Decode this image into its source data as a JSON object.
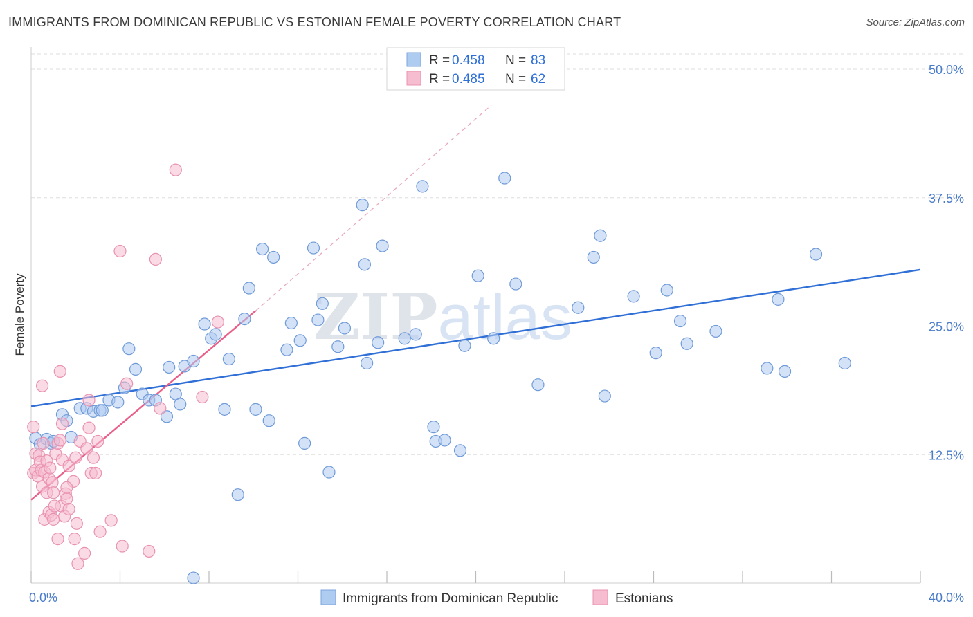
{
  "header": {
    "title": "IMMIGRANTS FROM DOMINICAN REPUBLIC VS ESTONIAN FEMALE POVERTY CORRELATION CHART",
    "source": "Source: ZipAtlas.com"
  },
  "watermark": {
    "part1": "ZIP",
    "part2": "atlas"
  },
  "colors": {
    "blue": "#2f6fd6",
    "blue_fill": "#aecbf0",
    "pink": "#e8608a",
    "pink_fill": "#f6bcd0",
    "grid": "#dddddd",
    "tick_text": "#4a7cc9"
  },
  "legend": {
    "r_label": "R =",
    "n_label": "N =",
    "rows": [
      {
        "r": "0.458",
        "n": "83"
      },
      {
        "r": "0.485",
        "n": "62"
      }
    ]
  },
  "chart_data": {
    "type": "scatter",
    "title": "IMMIGRANTS FROM DOMINICAN REPUBLIC VS ESTONIAN FEMALE POVERTY CORRELATION CHART",
    "ylabel": "Female Poverty",
    "xlabel": "",
    "xlim": [
      0,
      40
    ],
    "ylim": [
      0,
      50
    ],
    "x_tick_labels": [
      {
        "value": 0,
        "label": "0.0%"
      },
      {
        "value": 40,
        "label": "40.0%"
      }
    ],
    "y_tick_labels": [
      {
        "value": 12.5,
        "label": "12.5%"
      },
      {
        "value": 25,
        "label": "25.0%"
      },
      {
        "value": 37.5,
        "label": "37.5%"
      },
      {
        "value": 50,
        "label": "50.0%"
      }
    ],
    "grid": true,
    "legend_position": "top-center",
    "series": [
      {
        "name": "Immigrants from Dominican Republic",
        "color": "#2f6fd6",
        "trend": {
          "x": [
            0,
            40
          ],
          "y": [
            17.2,
            30.5
          ],
          "style": "solid"
        },
        "points": [
          [
            0.2,
            14.1
          ],
          [
            0.4,
            13.5
          ],
          [
            0.7,
            14.0
          ],
          [
            0.9,
            13.6
          ],
          [
            1.0,
            13.8
          ],
          [
            1.4,
            16.4
          ],
          [
            1.6,
            15.8
          ],
          [
            1.8,
            14.2
          ],
          [
            2.2,
            17.0
          ],
          [
            2.5,
            17.0
          ],
          [
            2.8,
            16.7
          ],
          [
            3.1,
            16.8
          ],
          [
            3.2,
            16.8
          ],
          [
            3.5,
            17.8
          ],
          [
            3.9,
            17.6
          ],
          [
            4.2,
            19.0
          ],
          [
            4.4,
            22.8
          ],
          [
            4.7,
            20.8
          ],
          [
            5.0,
            18.4
          ],
          [
            5.3,
            17.8
          ],
          [
            5.6,
            17.8
          ],
          [
            6.1,
            16.2
          ],
          [
            6.2,
            21.0
          ],
          [
            6.5,
            18.4
          ],
          [
            6.7,
            17.4
          ],
          [
            6.9,
            21.1
          ],
          [
            7.3,
            21.6
          ],
          [
            7.8,
            25.2
          ],
          [
            8.1,
            23.8
          ],
          [
            8.3,
            24.2
          ],
          [
            8.7,
            16.9
          ],
          [
            8.9,
            21.8
          ],
          [
            9.3,
            8.6
          ],
          [
            9.6,
            25.7
          ],
          [
            9.8,
            28.7
          ],
          [
            10.1,
            16.9
          ],
          [
            10.4,
            32.5
          ],
          [
            10.7,
            15.8
          ],
          [
            10.9,
            31.7
          ],
          [
            11.5,
            22.7
          ],
          [
            11.7,
            25.3
          ],
          [
            12.1,
            23.6
          ],
          [
            12.3,
            13.6
          ],
          [
            12.7,
            32.6
          ],
          [
            12.9,
            25.6
          ],
          [
            13.1,
            27.2
          ],
          [
            13.4,
            10.8
          ],
          [
            13.8,
            23.0
          ],
          [
            14.1,
            24.8
          ],
          [
            14.9,
            36.8
          ],
          [
            15.0,
            31.0
          ],
          [
            15.1,
            21.4
          ],
          [
            15.6,
            23.4
          ],
          [
            15.8,
            32.8
          ],
          [
            16.8,
            23.8
          ],
          [
            17.3,
            24.2
          ],
          [
            17.6,
            38.6
          ],
          [
            18.1,
            15.2
          ],
          [
            18.2,
            13.8
          ],
          [
            18.6,
            13.9
          ],
          [
            19.3,
            12.9
          ],
          [
            19.5,
            23.1
          ],
          [
            20.1,
            29.9
          ],
          [
            20.8,
            23.8
          ],
          [
            21.3,
            39.4
          ],
          [
            21.8,
            29.1
          ],
          [
            22.8,
            19.3
          ],
          [
            24.6,
            26.8
          ],
          [
            25.3,
            31.7
          ],
          [
            25.6,
            33.8
          ],
          [
            25.8,
            18.2
          ],
          [
            27.1,
            27.9
          ],
          [
            28.1,
            22.4
          ],
          [
            28.6,
            28.5
          ],
          [
            29.2,
            25.5
          ],
          [
            29.5,
            23.3
          ],
          [
            30.8,
            24.5
          ],
          [
            33.1,
            20.9
          ],
          [
            33.6,
            27.6
          ],
          [
            33.9,
            20.6
          ],
          [
            35.3,
            32.0
          ],
          [
            36.6,
            21.4
          ],
          [
            7.3,
            0.5
          ]
        ]
      },
      {
        "name": "Estonians",
        "color": "#e8608a",
        "trend": {
          "x": [
            0,
            10.1
          ],
          "y": [
            8.1,
            26.5
          ],
          "style": "solid",
          "extension": {
            "x": [
              10.1,
              20.7
            ],
            "y": [
              26.5,
              46.5
            ],
            "style": "dashed"
          }
        },
        "points": [
          [
            0.1,
            15.2
          ],
          [
            0.1,
            10.7
          ],
          [
            0.2,
            12.6
          ],
          [
            0.2,
            11.0
          ],
          [
            0.3,
            10.4
          ],
          [
            0.35,
            12.4
          ],
          [
            0.4,
            11.8
          ],
          [
            0.45,
            11.0
          ],
          [
            0.5,
            9.4
          ],
          [
            0.5,
            19.2
          ],
          [
            0.6,
            10.8
          ],
          [
            0.6,
            6.2
          ],
          [
            0.7,
            11.9
          ],
          [
            0.7,
            8.8
          ],
          [
            0.8,
            10.2
          ],
          [
            0.8,
            6.9
          ],
          [
            0.85,
            11.2
          ],
          [
            0.9,
            6.6
          ],
          [
            0.95,
            9.8
          ],
          [
            1.0,
            6.2
          ],
          [
            1.0,
            8.8
          ],
          [
            1.1,
            12.6
          ],
          [
            1.2,
            13.6
          ],
          [
            1.2,
            4.3
          ],
          [
            1.3,
            13.9
          ],
          [
            1.35,
            7.5
          ],
          [
            1.3,
            20.6
          ],
          [
            1.4,
            12.0
          ],
          [
            1.4,
            15.5
          ],
          [
            1.5,
            6.5
          ],
          [
            1.55,
            8.7
          ],
          [
            1.6,
            8.2
          ],
          [
            1.7,
            11.4
          ],
          [
            1.7,
            7.2
          ],
          [
            1.9,
            9.9
          ],
          [
            1.95,
            4.3
          ],
          [
            2.0,
            12.2
          ],
          [
            2.05,
            5.8
          ],
          [
            2.1,
            1.9
          ],
          [
            2.2,
            13.8
          ],
          [
            2.4,
            2.9
          ],
          [
            2.5,
            13.1
          ],
          [
            2.6,
            17.8
          ],
          [
            2.6,
            15.1
          ],
          [
            2.7,
            10.7
          ],
          [
            2.9,
            10.7
          ],
          [
            3.0,
            13.8
          ],
          [
            3.1,
            5.0
          ],
          [
            3.6,
            6.1
          ],
          [
            4.0,
            32.3
          ],
          [
            4.1,
            3.6
          ],
          [
            4.3,
            19.4
          ],
          [
            5.3,
            3.1
          ],
          [
            5.6,
            31.5
          ],
          [
            5.8,
            17.0
          ],
          [
            6.5,
            40.2
          ],
          [
            7.7,
            18.1
          ],
          [
            8.4,
            25.4
          ],
          [
            0.55,
            13.6
          ],
          [
            1.05,
            7.5
          ],
          [
            1.6,
            9.3
          ],
          [
            2.8,
            12.2
          ]
        ]
      }
    ]
  }
}
